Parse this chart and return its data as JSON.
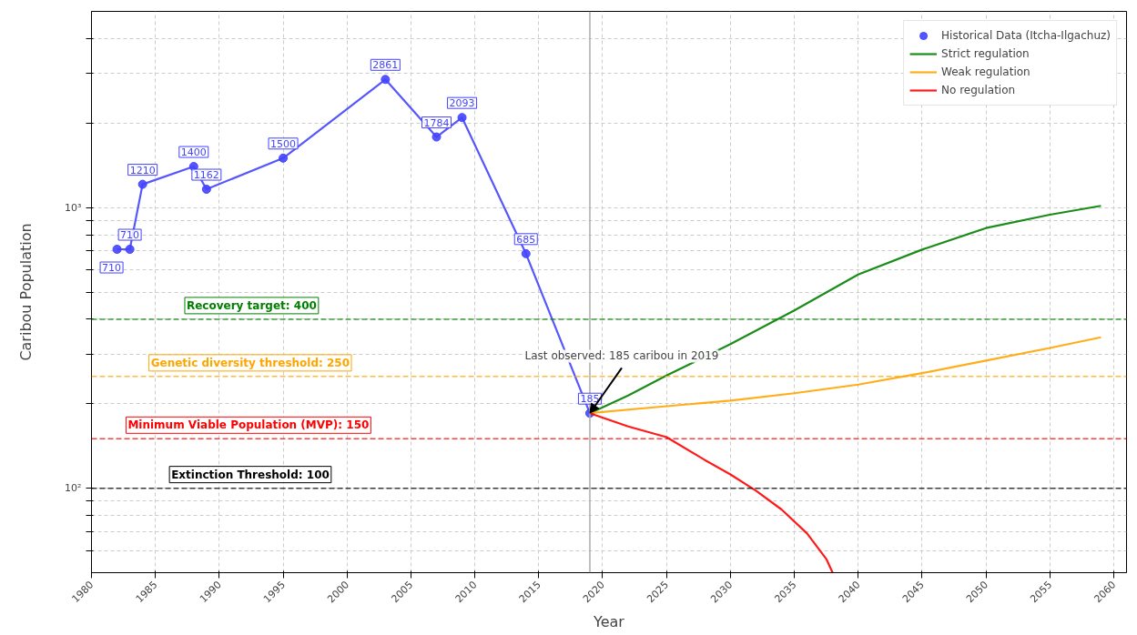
{
  "chart_data": {
    "type": "line",
    "xlabel": "Year",
    "ylabel": "Caribou Population",
    "xlim": [
      1980,
      2061
    ],
    "xticks": [
      1980,
      1985,
      1990,
      1995,
      2000,
      2005,
      2010,
      2015,
      2020,
      2025,
      2030,
      2035,
      2040,
      2045,
      2050,
      2055,
      2060
    ],
    "ylim": [
      50,
      5000
    ],
    "log": "y",
    "yticks": [
      {
        "value": 60,
        "label": null
      },
      {
        "value": 70,
        "label": null
      },
      {
        "value": 80,
        "label": null
      },
      {
        "value": 90,
        "label": null
      },
      {
        "value": 100,
        "label": "10²"
      },
      {
        "value": 200,
        "label": null
      },
      {
        "value": 300,
        "label": null
      },
      {
        "value": 400,
        "label": null
      },
      {
        "value": 500,
        "label": null
      },
      {
        "value": 600,
        "label": null
      },
      {
        "value": 700,
        "label": null
      },
      {
        "value": 800,
        "label": null
      },
      {
        "value": 900,
        "label": null
      },
      {
        "value": 1000,
        "label": "10³"
      },
      {
        "value": 2000,
        "label": null
      },
      {
        "value": 3000,
        "label": null
      },
      {
        "value": 4000,
        "label": null
      }
    ],
    "grid": true,
    "legend": "top right",
    "series": [
      {
        "name": "Historical Data (Itcha-Ilgachuz)",
        "marker": "circle",
        "color": "#4444ff",
        "x": [
          1982,
          1983,
          1984,
          1988,
          1989,
          1995,
          2003,
          2007,
          2009,
          2014,
          2019
        ],
        "values": [
          710,
          710,
          1210,
          1400,
          1162,
          1500,
          2861,
          1784,
          2093,
          685,
          185
        ],
        "value_labels": [
          "710",
          "710",
          "1210",
          "1400",
          "1162",
          "1500",
          "2861",
          "1784",
          "2093",
          "685",
          "185"
        ]
      },
      {
        "name": "Strict regulation",
        "marker": "none",
        "color": "#008000",
        "x": [
          2019,
          2022,
          2025,
          2030,
          2035,
          2040,
          2045,
          2050,
          2055,
          2059
        ],
        "values": [
          185,
          214,
          252,
          326,
          430,
          577,
          708,
          845,
          943,
          1014
        ]
      },
      {
        "name": "Weak regulation",
        "marker": "none",
        "color": "#ffa500",
        "x": [
          2019,
          2025,
          2030,
          2035,
          2040,
          2045,
          2050,
          2055,
          2059
        ],
        "values": [
          185,
          196,
          205,
          218,
          234,
          257,
          285,
          316,
          345
        ]
      },
      {
        "name": "No regulation",
        "marker": "none",
        "color": "#ff0000",
        "x": [
          2019,
          2022,
          2025,
          2028,
          2030,
          2032,
          2034,
          2036,
          2037.5,
          2038
        ],
        "values": [
          185,
          166,
          152,
          126,
          112,
          98,
          84,
          69,
          56,
          50
        ]
      }
    ],
    "ref_lines": [
      {
        "axis": "y",
        "value": 400,
        "label": "Recovery target: 400",
        "color": "#008000",
        "line_style": "dashed"
      },
      {
        "axis": "y",
        "value": 250,
        "label": "Genetic diversity threshold: 250",
        "color": "#ffa500",
        "line_style": "dashed"
      },
      {
        "axis": "y",
        "value": 150,
        "label": "Minimum Viable Population (MVP): 150",
        "color": "#ff0000",
        "line_style": "dashed"
      },
      {
        "axis": "y",
        "value": 100,
        "label": "Extinction Threshold: 100",
        "color": "#000000",
        "line_style": "dashed"
      },
      {
        "axis": "x",
        "value": 2019,
        "label": null,
        "color": "#aaaaaa",
        "line_style": "solid"
      }
    ],
    "annotations": [
      {
        "text": "Last observed: 185 caribou in 2019",
        "x": 2019,
        "y": 185
      }
    ]
  }
}
